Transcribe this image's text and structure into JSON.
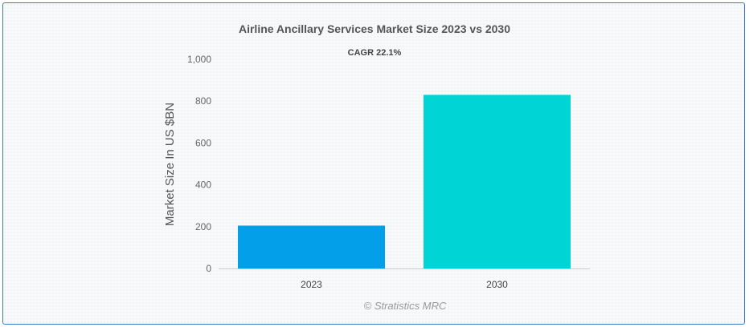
{
  "chart_data": {
    "type": "bar",
    "title": "Airline Ancillary Services Market Size 2023 vs 2030",
    "subtitle": "CAGR 22.1%",
    "categories": [
      "2023",
      "2030"
    ],
    "values": [
      205,
      830
    ],
    "colors": [
      "#03a0e9",
      "#00d4d4"
    ],
    "xlabel": "",
    "ylabel": "Market Size In US $BN",
    "ylim": [
      0,
      1000
    ],
    "yticks": [
      0,
      200,
      400,
      600,
      800,
      1000
    ],
    "ytick_labels": [
      "0",
      "200",
      "400",
      "600",
      "800",
      "1,000"
    ],
    "grid": false,
    "legend": "none"
  },
  "credit": "© Stratistics MRC"
}
